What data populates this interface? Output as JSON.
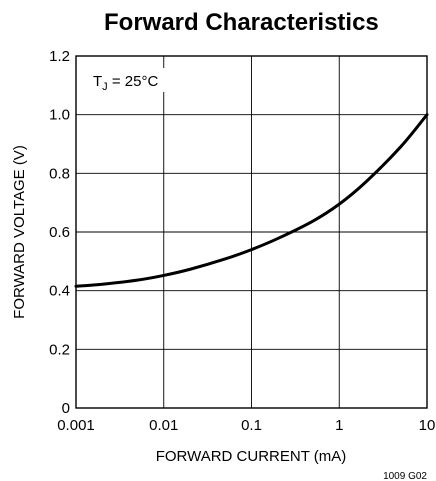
{
  "chart_data": {
    "type": "line",
    "title": "Forward Characteristics",
    "xlabel": "FORWARD CURRENT (mA)",
    "ylabel": "FORWARD VOLTAGE (V)",
    "xscale": "log",
    "xlim": [
      0.001,
      10
    ],
    "ylim": [
      0,
      1.2
    ],
    "x_ticks": [
      "0.001",
      "0.01",
      "0.1",
      "1",
      "10"
    ],
    "y_ticks": [
      "0",
      "0.2",
      "0.4",
      "0.6",
      "0.8",
      "1.0",
      "1.2"
    ],
    "grid": true,
    "annotation": {
      "main": "T",
      "sub": "J",
      "rest": " = 25°C"
    },
    "figure_id": "1009 G02",
    "series": [
      {
        "x": [
          0.001,
          0.002,
          0.005,
          0.01,
          0.02,
          0.05,
          0.1,
          0.2,
          0.5,
          1,
          2,
          5,
          10
        ],
        "y": [
          0.415,
          0.422,
          0.436,
          0.452,
          0.473,
          0.508,
          0.54,
          0.578,
          0.637,
          0.695,
          0.77,
          0.89,
          1.0
        ]
      }
    ]
  }
}
